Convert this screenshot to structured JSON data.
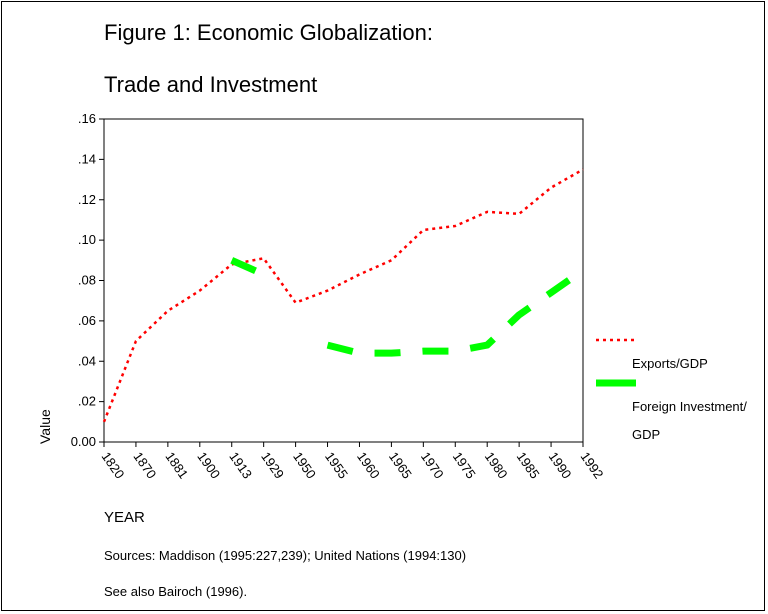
{
  "page": {
    "title_line1": "Figure 1: Economic Globalization:",
    "title_line2": "Trade and Investment",
    "source_note": "Sources: Maddison (1995:227,239); United Nations (1994:130)",
    "see_also_note": "See also Bairoch (1996)."
  },
  "chart_data": {
    "type": "line",
    "title": "Figure 1: Economic Globalization: Trade and Investment",
    "xlabel": "YEAR",
    "ylabel": "Value",
    "categories": [
      "1820",
      "1870",
      "1881",
      "1900",
      "1913",
      "1929",
      "1950",
      "1955",
      "1960",
      "1965",
      "1970",
      "1975",
      "1980",
      "1985",
      "1990",
      "1992"
    ],
    "ylim": [
      0,
      0.16
    ],
    "yticks": [
      {
        "value": 0.0,
        "label": "0.00"
      },
      {
        "value": 0.02,
        "label": ".02"
      },
      {
        "value": 0.04,
        "label": ".04"
      },
      {
        "value": 0.06,
        "label": ".06"
      },
      {
        "value": 0.08,
        "label": ".08"
      },
      {
        "value": 0.1,
        "label": ".10"
      },
      {
        "value": 0.12,
        "label": ".12"
      },
      {
        "value": 0.14,
        "label": ".14"
      },
      {
        "value": 0.16,
        "label": ".16"
      }
    ],
    "grid": false,
    "legend_position": "right",
    "series": [
      {
        "name": "Exports/GDP",
        "color": "#ff0000",
        "style": "dotted",
        "values": [
          0.01,
          0.05,
          0.065,
          0.075,
          0.088,
          0.091,
          0.069,
          0.075,
          0.083,
          0.09,
          0.105,
          0.107,
          0.114,
          0.113,
          0.126,
          0.135
        ]
      },
      {
        "name": "Foreign Investment/ GDP",
        "legend_lines": [
          "Foreign Investment/",
          "GDP"
        ],
        "color": "#00ff00",
        "style": "dashed-thick",
        "values": [
          null,
          null,
          null,
          null,
          0.09,
          0.083,
          null,
          0.048,
          0.044,
          0.044,
          0.045,
          0.045,
          0.048,
          0.063,
          0.074,
          0.085
        ]
      }
    ]
  }
}
